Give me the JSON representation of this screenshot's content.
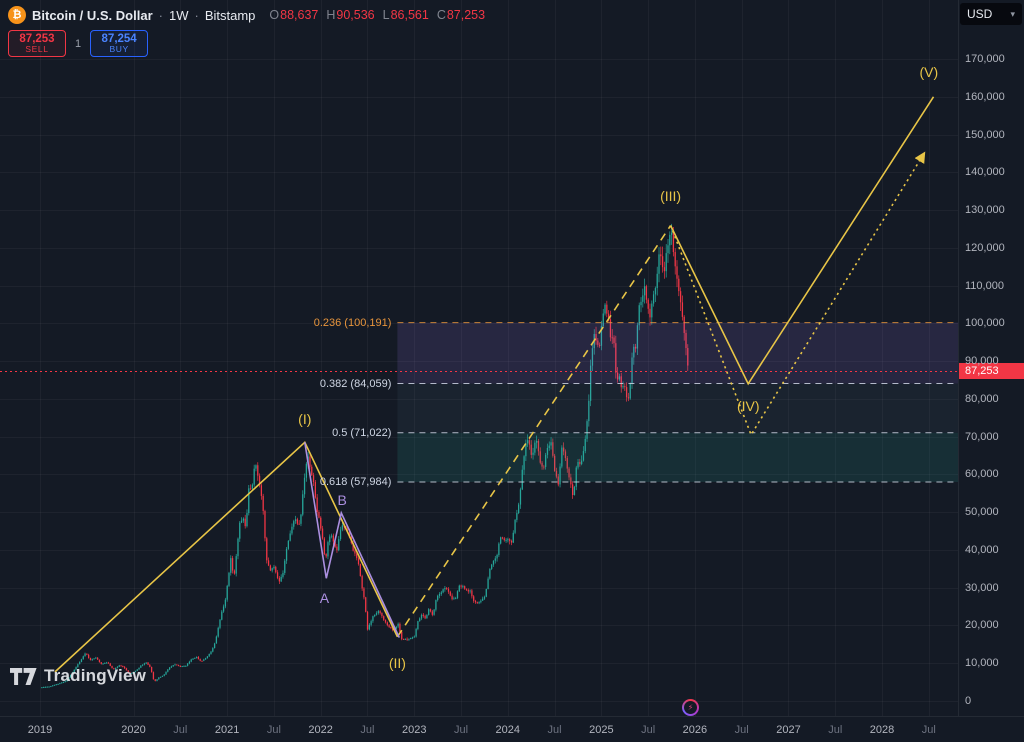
{
  "icons": {
    "bitcoin": "₿",
    "chevron_down": "▾",
    "spark": "⚡"
  },
  "toolbar": {
    "symbol_name": "Bitcoin / U.S. Dollar",
    "sep": "·",
    "interval": "1W",
    "exchange": "Bitstamp",
    "ohlc": [
      {
        "k": "O",
        "v": "88,637"
      },
      {
        "k": "H",
        "v": "90,536"
      },
      {
        "k": "L",
        "v": "86,561"
      },
      {
        "k": "C",
        "v": "87,253"
      }
    ],
    "ohlc_value_color": "#f23645",
    "currency": "USD"
  },
  "trade_panel": {
    "sell": {
      "price": "87,253",
      "label": "SELL",
      "color": "#f23645"
    },
    "quantity": "1",
    "buy": {
      "price": "87,254",
      "label": "BUY",
      "color": "#2962ff"
    }
  },
  "watermark": {
    "brand": "TradingView"
  },
  "price_axis": {
    "ticks": [
      {
        "v": 170000,
        "label": "170,000"
      },
      {
        "v": 160000,
        "label": "160,000"
      },
      {
        "v": 150000,
        "label": "150,000"
      },
      {
        "v": 140000,
        "label": "140,000"
      },
      {
        "v": 130000,
        "label": "130,000"
      },
      {
        "v": 120000,
        "label": "120,000"
      },
      {
        "v": 110000,
        "label": "110,000"
      },
      {
        "v": 100000,
        "label": "100,000"
      },
      {
        "v": 90000,
        "label": "90,000"
      },
      {
        "v": 80000,
        "label": "80,000"
      },
      {
        "v": 70000,
        "label": "70,000"
      },
      {
        "v": 60000,
        "label": "60,000"
      },
      {
        "v": 50000,
        "label": "50,000"
      },
      {
        "v": 40000,
        "label": "40,000"
      },
      {
        "v": 30000,
        "label": "30,000"
      },
      {
        "v": 20000,
        "label": "20,000"
      },
      {
        "v": 10000,
        "label": "10,000"
      },
      {
        "v": 0,
        "label": "0"
      }
    ],
    "last_price": {
      "value": 87253,
      "label": "87,253",
      "color": "#f23645"
    }
  },
  "time_axis": {
    "ticks": [
      {
        "t": 2019.0,
        "label": "2019",
        "major": true
      },
      {
        "t": 2020.0,
        "label": "2020",
        "major": true
      },
      {
        "t": 2020.5,
        "label": "Jul",
        "major": false
      },
      {
        "t": 2021.0,
        "label": "2021",
        "major": true
      },
      {
        "t": 2021.5,
        "label": "Jul",
        "major": false
      },
      {
        "t": 2022.0,
        "label": "2022",
        "major": true
      },
      {
        "t": 2022.5,
        "label": "Jul",
        "major": false
      },
      {
        "t": 2023.0,
        "label": "2023",
        "major": true
      },
      {
        "t": 2023.5,
        "label": "Jul",
        "major": false
      },
      {
        "t": 2024.0,
        "label": "2024",
        "major": true
      },
      {
        "t": 2024.5,
        "label": "Jul",
        "major": false
      },
      {
        "t": 2025.0,
        "label": "2025",
        "major": true
      },
      {
        "t": 2025.5,
        "label": "Jul",
        "major": false
      },
      {
        "t": 2026.0,
        "label": "2026",
        "major": true
      },
      {
        "t": 2026.5,
        "label": "Jul",
        "major": false
      },
      {
        "t": 2027.0,
        "label": "2027",
        "major": true
      },
      {
        "t": 2027.5,
        "label": "Jul",
        "major": false
      },
      {
        "t": 2028.0,
        "label": "2028",
        "major": true
      },
      {
        "t": 2028.5,
        "label": "Jul",
        "major": false
      }
    ]
  },
  "chart_data": {
    "type": "candlestick",
    "title": "Bitcoin / U.S. Dollar · 1W · Bitstamp",
    "y_axis_range": [
      0,
      170000
    ],
    "x_axis_range": [
      2019.0,
      2028.8
    ],
    "grid": true,
    "current_price": 87253,
    "candle_colors": {
      "up": "#26a69a",
      "down": "#f23645"
    },
    "price_path": [
      [
        2019.02,
        3650
      ],
      [
        2019.1,
        3850
      ],
      [
        2019.2,
        4600
      ],
      [
        2019.28,
        5300
      ],
      [
        2019.36,
        8000
      ],
      [
        2019.44,
        11000
      ],
      [
        2019.49,
        12900
      ],
      [
        2019.53,
        10800
      ],
      [
        2019.6,
        11500
      ],
      [
        2019.65,
        9800
      ],
      [
        2019.72,
        10300
      ],
      [
        2019.78,
        8300
      ],
      [
        2019.85,
        9500
      ],
      [
        2019.9,
        8800
      ],
      [
        2019.96,
        7200
      ],
      [
        2020.03,
        8100
      ],
      [
        2020.08,
        9400
      ],
      [
        2020.13,
        10300
      ],
      [
        2020.18,
        8900
      ],
      [
        2020.22,
        5000
      ],
      [
        2020.27,
        6200
      ],
      [
        2020.32,
        6800
      ],
      [
        2020.38,
        8900
      ],
      [
        2020.44,
        9700
      ],
      [
        2020.5,
        9150
      ],
      [
        2020.56,
        9300
      ],
      [
        2020.62,
        11100
      ],
      [
        2020.67,
        11700
      ],
      [
        2020.72,
        10500
      ],
      [
        2020.78,
        11500
      ],
      [
        2020.83,
        13100
      ],
      [
        2020.87,
        15500
      ],
      [
        2020.9,
        18700
      ],
      [
        2020.94,
        23300
      ],
      [
        2020.98,
        26500
      ],
      [
        2021.01,
        32200
      ],
      [
        2021.04,
        38200
      ],
      [
        2021.07,
        32100
      ],
      [
        2021.1,
        38900
      ],
      [
        2021.13,
        47100
      ],
      [
        2021.17,
        48600
      ],
      [
        2021.2,
        45200
      ],
      [
        2021.23,
        55900
      ],
      [
        2021.27,
        57400
      ],
      [
        2021.3,
        63200
      ],
      [
        2021.33,
        58900
      ],
      [
        2021.36,
        56000
      ],
      [
        2021.39,
        49100
      ],
      [
        2021.42,
        37300
      ],
      [
        2021.46,
        34700
      ],
      [
        2021.5,
        35600
      ],
      [
        2021.53,
        33400
      ],
      [
        2021.56,
        31500
      ],
      [
        2021.6,
        34300
      ],
      [
        2021.63,
        39900
      ],
      [
        2021.66,
        42800
      ],
      [
        2021.69,
        45600
      ],
      [
        2021.72,
        48800
      ],
      [
        2021.75,
        46700
      ],
      [
        2021.78,
        47200
      ],
      [
        2021.81,
        54700
      ],
      [
        2021.84,
        61500
      ],
      [
        2021.87,
        65500
      ],
      [
        2021.9,
        59700
      ],
      [
        2021.93,
        57200
      ],
      [
        2021.96,
        50500
      ],
      [
        2021.99,
        47300
      ],
      [
        2022.02,
        43100
      ],
      [
        2022.05,
        36900
      ],
      [
        2022.08,
        42400
      ],
      [
        2022.11,
        43900
      ],
      [
        2022.14,
        42200
      ],
      [
        2022.17,
        39400
      ],
      [
        2022.2,
        44300
      ],
      [
        2022.23,
        46800
      ],
      [
        2022.26,
        46300
      ],
      [
        2022.29,
        45500
      ],
      [
        2022.32,
        42100
      ],
      [
        2022.35,
        39700
      ],
      [
        2022.38,
        38500
      ],
      [
        2022.41,
        36000
      ],
      [
        2022.44,
        30100
      ],
      [
        2022.47,
        26700
      ],
      [
        2022.5,
        19000
      ],
      [
        2022.53,
        20600
      ],
      [
        2022.56,
        22500
      ],
      [
        2022.59,
        23200
      ],
      [
        2022.62,
        23800
      ],
      [
        2022.65,
        22600
      ],
      [
        2022.68,
        21300
      ],
      [
        2022.71,
        20100
      ],
      [
        2022.74,
        19500
      ],
      [
        2022.77,
        18800
      ],
      [
        2022.8,
        19400
      ],
      [
        2022.83,
        20600
      ],
      [
        2022.86,
        16300
      ],
      [
        2022.89,
        16550
      ],
      [
        2022.93,
        16250
      ],
      [
        2022.97,
        16700
      ],
      [
        2023.0,
        16850
      ],
      [
        2023.04,
        21100
      ],
      [
        2023.08,
        23000
      ],
      [
        2023.12,
        21650
      ],
      [
        2023.16,
        24600
      ],
      [
        2023.2,
        22350
      ],
      [
        2023.24,
        27700
      ],
      [
        2023.28,
        28300
      ],
      [
        2023.32,
        30000
      ],
      [
        2023.36,
        29250
      ],
      [
        2023.4,
        26900
      ],
      [
        2023.44,
        27150
      ],
      [
        2023.48,
        30600
      ],
      [
        2023.52,
        30250
      ],
      [
        2023.56,
        29300
      ],
      [
        2023.6,
        29150
      ],
      [
        2023.64,
        26050
      ],
      [
        2023.68,
        26100
      ],
      [
        2023.72,
        26550
      ],
      [
        2023.76,
        27950
      ],
      [
        2023.8,
        34150
      ],
      [
        2023.84,
        37050
      ],
      [
        2023.88,
        37700
      ],
      [
        2023.92,
        43750
      ],
      [
        2023.96,
        42250
      ],
      [
        2024.0,
        42550
      ],
      [
        2024.04,
        41650
      ],
      [
        2024.08,
        48150
      ],
      [
        2024.12,
        52100
      ],
      [
        2024.16,
        62500
      ],
      [
        2024.19,
        68300
      ],
      [
        2024.22,
        69400
      ],
      [
        2024.26,
        63900
      ],
      [
        2024.3,
        69850
      ],
      [
        2024.34,
        63850
      ],
      [
        2024.38,
        60750
      ],
      [
        2024.42,
        67150
      ],
      [
        2024.46,
        68950
      ],
      [
        2024.5,
        60950
      ],
      [
        2024.54,
        57050
      ],
      [
        2024.58,
        68150
      ],
      [
        2024.62,
        64100
      ],
      [
        2024.66,
        58700
      ],
      [
        2024.7,
        54100
      ],
      [
        2024.74,
        63550
      ],
      [
        2024.78,
        62050
      ],
      [
        2024.82,
        68000
      ],
      [
        2024.86,
        76250
      ],
      [
        2024.89,
        90600
      ],
      [
        2024.92,
        97700
      ],
      [
        2024.95,
        95150
      ],
      [
        2024.98,
        94300
      ],
      [
        2025.01,
        102100
      ],
      [
        2025.04,
        104400
      ],
      [
        2025.07,
        102650
      ],
      [
        2025.1,
        96100
      ],
      [
        2025.13,
        96550
      ],
      [
        2025.16,
        84350
      ],
      [
        2025.19,
        86050
      ],
      [
        2025.22,
        82600
      ],
      [
        2025.25,
        83750
      ],
      [
        2025.28,
        78400
      ],
      [
        2025.31,
        85050
      ],
      [
        2025.34,
        94700
      ],
      [
        2025.37,
        93950
      ],
      [
        2025.4,
        104050
      ],
      [
        2025.43,
        106400
      ],
      [
        2025.46,
        109650
      ],
      [
        2025.49,
        104600
      ],
      [
        2025.52,
        101650
      ],
      [
        2025.55,
        108250
      ],
      [
        2025.58,
        109200
      ],
      [
        2025.61,
        117350
      ],
      [
        2025.64,
        118000
      ],
      [
        2025.67,
        113450
      ],
      [
        2025.7,
        119000
      ],
      [
        2025.73,
        124450
      ],
      [
        2025.75,
        123700
      ],
      [
        2025.78,
        117000
      ],
      [
        2025.81,
        111500
      ],
      [
        2025.84,
        107000
      ],
      [
        2025.87,
        101000
      ],
      [
        2025.9,
        94500
      ],
      [
        2025.93,
        87253
      ]
    ],
    "fib_retracement": {
      "start_t": 2022.82,
      "levels": [
        {
          "level": 0.236,
          "price": 100191,
          "label": "0.236 (100,191)",
          "color": "#e8953c"
        },
        {
          "level": 0.382,
          "price": 84059,
          "label": "0.382 (84,059)",
          "color": "#cfd6e4"
        },
        {
          "level": 0.5,
          "price": 71022,
          "label": "0.5 (71,022)",
          "color": "#cfd6e4"
        },
        {
          "level": 0.618,
          "price": 57984,
          "label": "0.618 (57,984)",
          "color": "#cfd6e4"
        }
      ],
      "band_fills": [
        "rgba(170,130,255,0.13)",
        "rgba(120,150,190,0.07)",
        "rgba(38,166,154,0.15)"
      ]
    },
    "elliott_waves": {
      "segments": [
        {
          "name": "advance-to-I-and-correction",
          "style": "solid",
          "color": "#e8c547",
          "arrow": false,
          "points": [
            [
              2019.16,
              7700
            ],
            [
              2021.83,
              68500
            ],
            [
              2022.82,
              17000
            ]
          ]
        },
        {
          "name": "wave-II-to-III",
          "style": "dashed",
          "color": "#e8c547",
          "arrow": false,
          "points": [
            [
              2022.82,
              17000
            ],
            [
              2025.74,
              125900
            ]
          ]
        },
        {
          "name": "projection-III-IV-V",
          "style": "solid",
          "color": "#e8c547",
          "arrow": false,
          "points": [
            [
              2025.74,
              125900
            ],
            [
              2026.57,
              84000
            ],
            [
              2028.55,
              160000
            ]
          ]
        },
        {
          "name": "projection-alternate",
          "style": "dotted",
          "color": "#e8c547",
          "arrow": true,
          "points": [
            [
              2025.74,
              125900
            ],
            [
              2026.6,
              70500
            ],
            [
              2028.45,
              145000
            ]
          ]
        },
        {
          "name": "correction-A-B",
          "style": "solid",
          "color": "#ab8fe0",
          "arrow": false,
          "points": [
            [
              2021.83,
              68500
            ],
            [
              2022.06,
              32500
            ],
            [
              2022.22,
              49800
            ],
            [
              2022.84,
              16800
            ]
          ]
        }
      ],
      "labels": [
        {
          "text": "(I)",
          "t": 2021.83,
          "p": 74800,
          "color": "#e8c547"
        },
        {
          "text": "(II)",
          "t": 2022.82,
          "p": 10000,
          "color": "#e8c547"
        },
        {
          "text": "(III)",
          "t": 2025.74,
          "p": 133800,
          "color": "#e8c547"
        },
        {
          "text": "(IV)",
          "t": 2026.57,
          "p": 78200,
          "color": "#e8c547"
        },
        {
          "text": "(V)",
          "t": 2028.5,
          "p": 166500,
          "color": "#e8c547"
        },
        {
          "text": "A",
          "t": 2022.04,
          "p": 27300,
          "color": "#ab8fe0"
        },
        {
          "text": "B",
          "t": 2022.23,
          "p": 53200,
          "color": "#ab8fe0"
        }
      ]
    }
  }
}
